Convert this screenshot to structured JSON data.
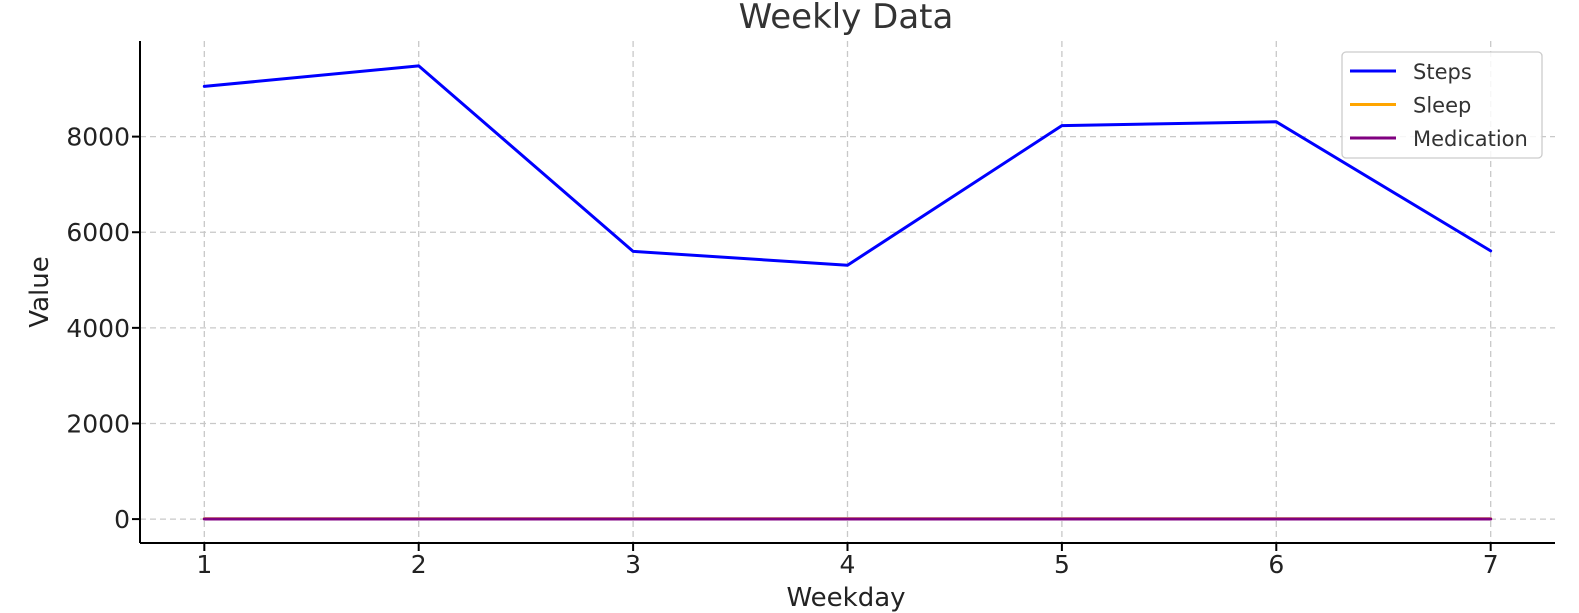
{
  "chart_data": {
    "type": "line",
    "title": "Weekly Data",
    "xlabel": "Weekday",
    "ylabel": "Value",
    "x": [
      1,
      2,
      3,
      4,
      5,
      6,
      7
    ],
    "xticks": [
      "1",
      "2",
      "3",
      "4",
      "5",
      "6",
      "7"
    ],
    "yticks": [
      "0",
      "2000",
      "4000",
      "6000",
      "8000"
    ],
    "xlim": [
      0.7,
      7.3
    ],
    "ylim": [
      -500,
      10000
    ],
    "grid": true,
    "legend_position": "top-right",
    "series": [
      {
        "name": "Steps",
        "color": "#0000ff",
        "values": [
          9050,
          9480,
          5600,
          5310,
          8230,
          8310,
          5610
        ]
      },
      {
        "name": "Sleep",
        "color": "#ffa500",
        "values": [
          7,
          6.5,
          8,
          7.5,
          6,
          7,
          8
        ]
      },
      {
        "name": "Medication",
        "color": "#800080",
        "values": [
          1,
          1,
          1,
          1,
          1,
          1,
          1
        ]
      }
    ]
  }
}
